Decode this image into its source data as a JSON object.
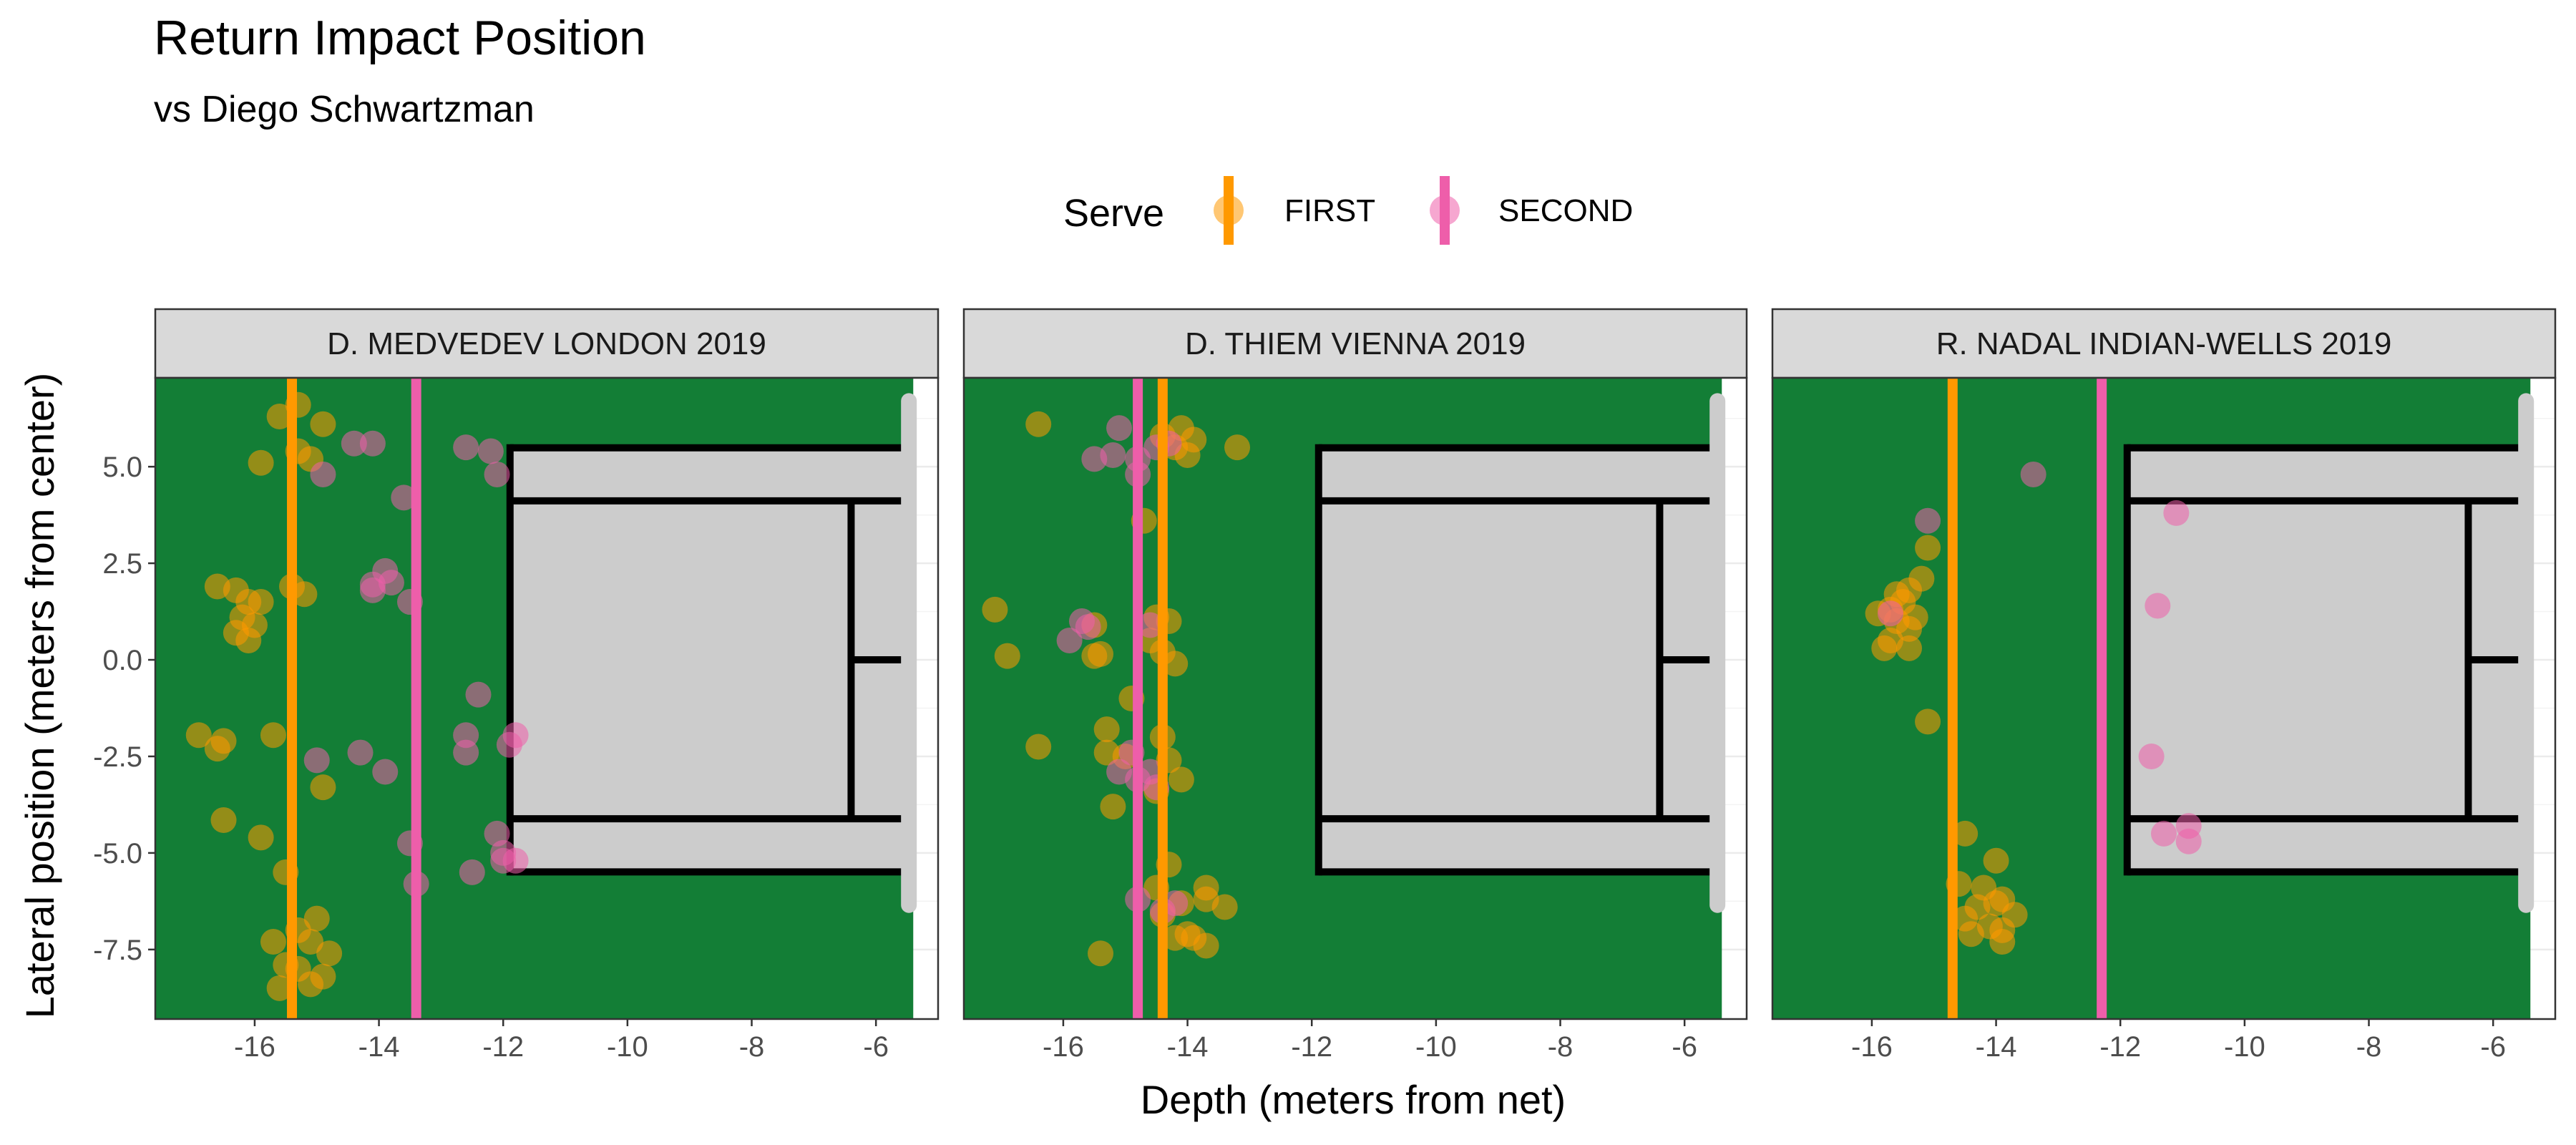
{
  "title": "Return Impact Position",
  "subtitle": "vs Diego Schwartzman",
  "legend": {
    "title": "Serve",
    "items": [
      {
        "label": "FIRST",
        "color": "#FF9900"
      },
      {
        "label": "SECOND",
        "color": "#EE5EAA"
      }
    ]
  },
  "colors": {
    "court_surround": "#137E36",
    "court_inner": "#CCCCCC",
    "court_lines": "#000000",
    "strip_fill": "#D9D9D9",
    "net": "#CCCCCC"
  },
  "chart_data": {
    "type": "scatter",
    "xlabel": "Depth (meters from net)",
    "ylabel": "Lateral position (meters from center)",
    "xlim": [
      -17.6,
      -5.0
    ],
    "ylim": [
      -9.3,
      7.3
    ],
    "x_ticks": [
      -16,
      -14,
      -12,
      -10,
      -8,
      -6
    ],
    "y_ticks": [
      5.0,
      2.5,
      0.0,
      -2.5,
      -5.0,
      -7.5
    ],
    "x_tick_labels": [
      "-16",
      "-14",
      "-12",
      "-10",
      "-8",
      "-6"
    ],
    "y_tick_labels": [
      "5.0",
      "2.5",
      "0.0",
      "-2.5",
      "-5.0",
      "-7.5"
    ],
    "grid": true,
    "legend_position": "top",
    "panels": [
      {
        "label": "D. MEDVEDEV LONDON 2019",
        "mean_depth": {
          "FIRST": -15.4,
          "SECOND": -13.4
        },
        "series": [
          {
            "name": "FIRST",
            "points": [
              [
                -15.6,
                6.3
              ],
              [
                -15.3,
                6.6
              ],
              [
                -14.9,
                6.1
              ],
              [
                -15.9,
                5.1
              ],
              [
                -15.3,
                5.4
              ],
              [
                -15.1,
                5.2
              ],
              [
                -15.4,
                1.9
              ],
              [
                -15.2,
                1.7
              ],
              [
                -16.6,
                1.9
              ],
              [
                -16.3,
                1.8
              ],
              [
                -16.1,
                1.5
              ],
              [
                -15.9,
                1.5
              ],
              [
                -16.2,
                1.1
              ],
              [
                -16.0,
                0.9
              ],
              [
                -16.3,
                0.7
              ],
              [
                -16.1,
                0.5
              ],
              [
                -16.9,
                -1.95
              ],
              [
                -16.5,
                -2.1
              ],
              [
                -16.6,
                -2.3
              ],
              [
                -15.7,
                -1.95
              ],
              [
                -14.9,
                -3.3
              ],
              [
                -16.5,
                -4.15
              ],
              [
                -15.9,
                -4.6
              ],
              [
                -15.5,
                -5.5
              ],
              [
                -15.0,
                -6.7
              ],
              [
                -15.3,
                -7.0
              ],
              [
                -15.7,
                -7.3
              ],
              [
                -15.1,
                -7.3
              ],
              [
                -14.8,
                -7.6
              ],
              [
                -15.5,
                -7.9
              ],
              [
                -15.3,
                -8.0
              ],
              [
                -15.6,
                -8.5
              ],
              [
                -15.1,
                -8.4
              ],
              [
                -14.9,
                -8.2
              ]
            ]
          },
          {
            "name": "SECOND",
            "points": [
              [
                -14.4,
                5.6
              ],
              [
                -14.1,
                5.6
              ],
              [
                -14.9,
                4.8
              ],
              [
                -13.6,
                4.2
              ],
              [
                -12.6,
                5.5
              ],
              [
                -12.2,
                5.4
              ],
              [
                -12.1,
                4.8
              ],
              [
                -13.9,
                2.3
              ],
              [
                -14.1,
                1.95
              ],
              [
                -14.1,
                1.8
              ],
              [
                -13.8,
                2.0
              ],
              [
                -13.5,
                1.5
              ],
              [
                -12.4,
                -0.9
              ],
              [
                -12.6,
                -1.95
              ],
              [
                -12.6,
                -2.4
              ],
              [
                -11.8,
                -1.95
              ],
              [
                -11.9,
                -2.2
              ],
              [
                -15.0,
                -2.6
              ],
              [
                -14.3,
                -2.4
              ],
              [
                -13.9,
                -2.9
              ],
              [
                -13.5,
                -4.75
              ],
              [
                -13.4,
                -5.8
              ],
              [
                -12.1,
                -4.5
              ],
              [
                -12.0,
                -5.0
              ],
              [
                -12.0,
                -5.2
              ],
              [
                -11.8,
                -5.2
              ],
              [
                -12.5,
                -5.5
              ]
            ]
          }
        ]
      },
      {
        "label": "D. THIEM VIENNA 2019",
        "mean_depth": {
          "FIRST": -14.4,
          "SECOND": -14.8
        },
        "series": [
          {
            "name": "FIRST",
            "points": [
              [
                -16.4,
                6.1
              ],
              [
                -14.4,
                5.8
              ],
              [
                -14.1,
                6.0
              ],
              [
                -13.9,
                5.7
              ],
              [
                -14.2,
                5.5
              ],
              [
                -14.0,
                5.3
              ],
              [
                -13.2,
                5.5
              ],
              [
                -14.7,
                3.6
              ],
              [
                -17.1,
                1.3
              ],
              [
                -16.9,
                0.1
              ],
              [
                -15.5,
                0.9
              ],
              [
                -15.5,
                0.1
              ],
              [
                -15.4,
                0.15
              ],
              [
                -14.5,
                1.1
              ],
              [
                -14.3,
                1.0
              ],
              [
                -14.6,
                0.5
              ],
              [
                -14.4,
                0.2
              ],
              [
                -14.2,
                -0.1
              ],
              [
                -14.9,
                -1.0
              ],
              [
                -16.4,
                -2.25
              ],
              [
                -15.3,
                -1.8
              ],
              [
                -15.3,
                -2.4
              ],
              [
                -15.0,
                -2.5
              ],
              [
                -14.4,
                -2.0
              ],
              [
                -14.3,
                -2.6
              ],
              [
                -14.1,
                -3.1
              ],
              [
                -14.5,
                -3.4
              ],
              [
                -15.2,
                -3.8
              ],
              [
                -14.3,
                -5.3
              ],
              [
                -14.5,
                -5.9
              ],
              [
                -14.1,
                -6.3
              ],
              [
                -13.7,
                -5.9
              ],
              [
                -13.4,
                -6.4
              ],
              [
                -13.7,
                -6.2
              ],
              [
                -14.4,
                -6.6
              ],
              [
                -14.0,
                -7.1
              ],
              [
                -14.2,
                -7.2
              ],
              [
                -13.9,
                -7.2
              ],
              [
                -13.7,
                -7.4
              ],
              [
                -15.4,
                -7.6
              ]
            ]
          },
          {
            "name": "SECOND",
            "points": [
              [
                -15.5,
                5.2
              ],
              [
                -15.2,
                5.3
              ],
              [
                -15.1,
                6.0
              ],
              [
                -14.8,
                5.2
              ],
              [
                -14.8,
                4.8
              ],
              [
                -14.5,
                5.5
              ],
              [
                -14.3,
                5.6
              ],
              [
                -15.7,
                1.0
              ],
              [
                -15.6,
                0.85
              ],
              [
                -15.9,
                0.5
              ],
              [
                -14.6,
                0.9
              ],
              [
                -15.1,
                -2.9
              ],
              [
                -14.9,
                -2.4
              ],
              [
                -14.8,
                -3.1
              ],
              [
                -14.6,
                -2.9
              ],
              [
                -14.5,
                -3.3
              ],
              [
                -14.8,
                -6.2
              ],
              [
                -14.4,
                -6.5
              ],
              [
                -14.2,
                -6.3
              ]
            ]
          }
        ]
      },
      {
        "label": "R. NADAL INDIAN-WELLS 2019",
        "mean_depth": {
          "FIRST": -14.7,
          "SECOND": -12.3
        },
        "series": [
          {
            "name": "FIRST",
            "points": [
              [
                -15.1,
                2.9
              ],
              [
                -15.2,
                2.1
              ],
              [
                -15.4,
                1.8
              ],
              [
                -15.6,
                1.7
              ],
              [
                -15.5,
                1.5
              ],
              [
                -15.7,
                1.3
              ],
              [
                -15.9,
                1.2
              ],
              [
                -15.6,
                1.0
              ],
              [
                -15.4,
                0.8
              ],
              [
                -15.3,
                1.1
              ],
              [
                -15.7,
                0.5
              ],
              [
                -15.8,
                0.3
              ],
              [
                -15.4,
                0.3
              ],
              [
                -15.1,
                -1.6
              ],
              [
                -14.5,
                -4.5
              ],
              [
                -14.0,
                -5.2
              ],
              [
                -14.6,
                -5.8
              ],
              [
                -14.2,
                -5.9
              ],
              [
                -14.3,
                -6.4
              ],
              [
                -14.0,
                -6.3
              ],
              [
                -13.9,
                -6.2
              ],
              [
                -13.7,
                -6.6
              ],
              [
                -14.5,
                -6.7
              ],
              [
                -14.1,
                -6.9
              ],
              [
                -13.9,
                -7.0
              ],
              [
                -14.4,
                -7.1
              ],
              [
                -13.9,
                -7.3
              ]
            ]
          },
          {
            "name": "SECOND",
            "points": [
              [
                -13.4,
                4.8
              ],
              [
                -15.1,
                3.6
              ],
              [
                -15.7,
                1.2
              ],
              [
                -11.1,
                3.8
              ],
              [
                -11.4,
                1.4
              ],
              [
                -11.5,
                -2.5
              ],
              [
                -11.3,
                -4.5
              ],
              [
                -10.9,
                -4.3
              ],
              [
                -10.9,
                -4.7
              ]
            ]
          }
        ]
      }
    ]
  }
}
